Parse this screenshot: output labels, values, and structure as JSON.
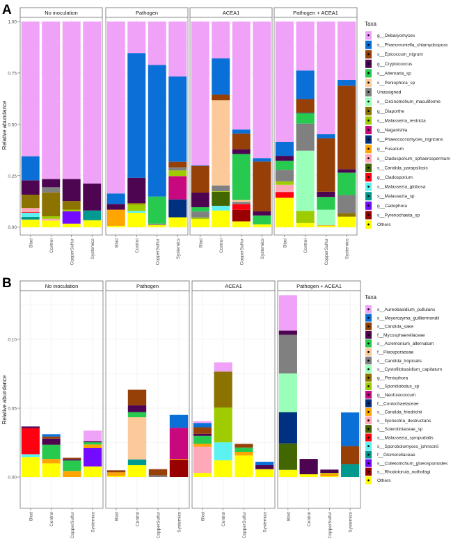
{
  "chart_data": [
    {
      "type": "bar",
      "stacked": true,
      "panel_label": "A",
      "ylabel": "Relative abundance",
      "yticks": [
        "0.00",
        "0.25",
        "0.50",
        "0.75",
        "1.00"
      ],
      "ytick_values": [
        0,
        0.25,
        0.5,
        0.75,
        1.0
      ],
      "ylim": [
        -0.04,
        1.04
      ],
      "categories": [
        "Blad",
        "Control",
        "CopperSulfur",
        "Systemics"
      ],
      "legend_title": "Taxa",
      "legend_position": "right",
      "taxa": [
        {
          "name": "g__Debaryomyces",
          "color": "#EFA2F7"
        },
        {
          "name": "s__Phaeomoniella_chlamydospora",
          "color": "#0A70D8"
        },
        {
          "name": "s__Epicoccum_nigrum",
          "color": "#963F07"
        },
        {
          "name": "g__Cryptococcus",
          "color": "#4D0552"
        },
        {
          "name": "s__Alternaria_sp",
          "color": "#27C94F"
        },
        {
          "name": "s__Peniophora_sp",
          "color": "#FCC99A"
        },
        {
          "name": "Unassigned",
          "color": "#808080"
        },
        {
          "name": "s__Circinotrichum_maculiforme",
          "color": "#99FFB9"
        },
        {
          "name": "g__Diaporthe",
          "color": "#8C7300"
        },
        {
          "name": "s__Malassezia_restricta",
          "color": "#9FCC00"
        },
        {
          "name": "g__Naganishia",
          "color": "#C8087F"
        },
        {
          "name": "s__Phaeococcomyces_nigricans",
          "color": "#003180"
        },
        {
          "name": "g__Fusarium",
          "color": "#FFA500"
        },
        {
          "name": "s__Cladosporium_sphaerospermum",
          "color": "#FFA8B8"
        },
        {
          "name": "s__Candida_parapsilosis",
          "color": "#426600"
        },
        {
          "name": "g__Cladosporium",
          "color": "#FF0010"
        },
        {
          "name": "s__Malassezia_globosa",
          "color": "#5EF1F2"
        },
        {
          "name": "s__Malassezia_sp",
          "color": "#00998F"
        },
        {
          "name": "g__Cadophora",
          "color": "#740AFF"
        },
        {
          "name": "s__Pyrenochaeta_sp",
          "color": "#990000"
        },
        {
          "name": "Others",
          "color": "#FFFF00"
        }
      ],
      "facets": [
        {
          "title": "No inoculation",
          "bars": [
            {
              "category": "Blad",
              "values": {
                "Others": 0.037,
                "s__Malassezia_sp": 0.013,
                "s__Malassezia_globosa": 0.02,
                "g__Cladosporium": 0.003,
                "s__Cladosporium_sphaerospermum": 0.02,
                "g__Diaporthe": 0.065,
                "g__Cryptococcus": 0.07,
                "s__Phaeomoniella_chlamydospora": 0.117,
                "g__Debaryomyces": 0.655
              }
            },
            {
              "category": "Control",
              "values": {
                "Others": 0.032,
                "s__Cladosporium_sphaerospermum": 0.008,
                "s__Malassezia_restricta": 0.013,
                "g__Diaporthe": 0.116,
                "Unassigned": 0.025,
                "g__Cryptococcus": 0.04,
                "g__Debaryomyces": 0.766
              }
            },
            {
              "category": "CopperSulfur",
              "values": {
                "Others": 0.017,
                "g__Cadophora": 0.06,
                "s__Malassezia_restricta": 0.008,
                "g__Diaporthe": 0.042,
                "g__Cryptococcus": 0.107,
                "g__Debaryomyces": 0.766
              }
            },
            {
              "category": "Systemics",
              "values": {
                "Others": 0.034,
                "s__Malassezia_sp": 0.047,
                "g__Cryptococcus": 0.131,
                "g__Debaryomyces": 0.788
              }
            }
          ]
        },
        {
          "title": "Pathogen",
          "bars": [
            {
              "category": "Blad",
              "values": {
                "Others": 0.006,
                "g__Fusarium": 0.079,
                "g__Cryptococcus": 0.028,
                "s__Phaeomoniella_chlamydospora": 0.051,
                "g__Debaryomyces": 0.836
              }
            },
            {
              "category": "Control",
              "values": {
                "Others": 0.07,
                "s__Malassezia_globosa": 0.009,
                "g__Diaporthe": 0.006,
                "s__Malassezia_restricta": 0.032,
                "g__Cryptococcus": 0.123,
                "s__Phaeomoniella_chlamydospora": 0.607,
                "g__Debaryomyces": 0.153
              }
            },
            {
              "category": "CopperSulfur",
              "values": {
                "Others": 0.011,
                "Unassigned": 0.006,
                "s__Alternaria_sp": 0.132,
                "s__Phaeomoniella_chlamydospora": 0.64,
                "g__Debaryomyces": 0.211
              }
            },
            {
              "category": "Systemics",
              "values": {
                "Others": 0.048,
                "s__Phaeococcomyces_nigricans": 0.087,
                "g__Naganishia": 0.113,
                "s__Malassezia_restricta": 0.028,
                "Unassigned": 0.015,
                "s__Epicoccum_nigrum": 0.027,
                "s__Phaeomoniella_chlamydospora": 0.415,
                "g__Debaryomyces": 0.267
              }
            }
          ]
        },
        {
          "title": "ACEA1",
          "bars": [
            {
              "category": "Blad",
              "values": {
                "Others": 0.039,
                "s__Malassezia_restricta": 0.008,
                "Unassigned": 0.029,
                "s__Alternaria_sp": 0.021,
                "g__Cryptococcus": 0.071,
                "s__Epicoccum_nigrum": 0.13,
                "s__Phaeomoniella_chlamydospora": 0.003,
                "g__Debaryomyces": 0.699
              }
            },
            {
              "category": "Control",
              "values": {
                "Others": 0.081,
                "s__Malassezia_globosa": 0.023,
                "s__Candida_parapsilosis": 0.068,
                "s__Malassezia_restricta": 0.003,
                "Unassigned": 0.028,
                "s__Peniophora_sp": 0.414,
                "s__Epicoccum_nigrum": 0.028,
                "s__Phaeomoniella_chlamydospora": 0.176,
                "g__Debaryomyces": 0.179
              }
            },
            {
              "category": "CopperSulfur",
              "values": {
                "Others": 0.028,
                "s__Pyrenochaeta_sp": 0.056,
                "g__Cladosporium": 0.028,
                "s__Peniophora_sp": 0.009,
                "Unassigned": 0.011,
                "s__Alternaria_sp": 0.224,
                "g__Cryptococcus": 0.023,
                "s__Epicoccum_nigrum": 0.076,
                "s__Phaeomoniella_chlamydospora": 0.02,
                "g__Debaryomyces": 0.525
              }
            },
            {
              "category": "Systemics",
              "values": {
                "Others": 0.014,
                "s__Alternaria_sp": 0.043,
                "g__Cryptococcus": 0.02,
                "s__Epicoccum_nigrum": 0.242,
                "s__Phaeomoniella_chlamydospora": 0.017,
                "g__Debaryomyces": 0.664
              }
            }
          ]
        },
        {
          "title": "Pathogen + ACEA1",
          "bars": [
            {
              "category": "Blad",
              "values": {
                "Others": 0.143,
                "g__Cladosporium": 0.028,
                "s__Cladosporium_sphaerospermum": 0.035,
                "s__Malassezia_restricta": 0.017,
                "Unassigned": 0.056,
                "s__Alternaria_sp": 0.044,
                "g__Cryptococcus": 0.024,
                "s__Phaeomoniella_chlamydospora": 0.068,
                "g__Debaryomyces": 0.585
              }
            },
            {
              "category": "Control",
              "values": {
                "Others": 0.02,
                "s__Malassezia_restricta": 0.059,
                "s__Circinotrichum_maculiforme": 0.293,
                "Unassigned": 0.132,
                "s__Alternaria_sp": 0.051,
                "g__Cryptococcus": 0.003,
                "s__Epicoccum_nigrum": 0.065,
                "s__Phaeomoniella_chlamydospora": 0.139,
                "g__Debaryomyces": 0.238
              }
            },
            {
              "category": "CopperSulfur",
              "values": {
                "Others": 0.006,
                "g__Fusarium": 0.003,
                "s__Circinotrichum_maculiforme": 0.076,
                "s__Alternaria_sp": 0.062,
                "g__Cryptococcus": 0.025,
                "s__Epicoccum_nigrum": 0.26,
                "s__Phaeomoniella_chlamydospora": 0.02,
                "g__Debaryomyces": 0.548
              }
            },
            {
              "category": "Systemics",
              "values": {
                "Others": 0.051,
                "g__Diaporthe": 0.017,
                "Unassigned": 0.088,
                "s__Alternaria_sp": 0.109,
                "g__Cryptococcus": 0.017,
                "s__Epicoccum_nigrum": 0.406,
                "s__Phaeomoniella_chlamydospora": 0.028,
                "g__Debaryomyces": 0.284
              }
            }
          ]
        }
      ]
    },
    {
      "type": "bar",
      "stacked": true,
      "panel_label": "B",
      "ylabel": "Relative abundance",
      "yticks": [
        "0.00",
        "0.05",
        "0.10"
      ],
      "ytick_values": [
        0,
        0.05,
        0.1
      ],
      "ylim": [
        -0.023,
        0.135
      ],
      "categories": [
        "Blad",
        "Control",
        "CopperSulfur",
        "Systemics"
      ],
      "legend_title": "Taxa",
      "legend_position": "right",
      "taxa": [
        {
          "name": "s__Aureobasidium_pullulans",
          "color": "#EFA2F7"
        },
        {
          "name": "s__Meyerozyma_guilliermondii",
          "color": "#0A70D8"
        },
        {
          "name": "s__Candida_sake",
          "color": "#963F07"
        },
        {
          "name": "f__Mycosphaerellaceae",
          "color": "#4D0552"
        },
        {
          "name": "s__Acremonium_alternatum",
          "color": "#27C94F"
        },
        {
          "name": "f__Pleosporaceae",
          "color": "#FCC99A"
        },
        {
          "name": "s__Candida_tropicalis",
          "color": "#808080"
        },
        {
          "name": "s__Cystofilobasidium_capitatum",
          "color": "#99FFB9"
        },
        {
          "name": "g__Peniophora",
          "color": "#8C7300"
        },
        {
          "name": "s__Sporidiobolus_sp",
          "color": "#9FCC00"
        },
        {
          "name": "g__Neofusicoccum",
          "color": "#C8087F"
        },
        {
          "name": "f__Coniochaetaceae",
          "color": "#003180"
        },
        {
          "name": "s__Candida_friedrichii",
          "color": "#FFA500"
        },
        {
          "name": "s__Ilyonectria_destructans",
          "color": "#FFA8B8"
        },
        {
          "name": "s__Sclerotiniaceae_sp",
          "color": "#426600"
        },
        {
          "name": "s__Malassezia_sympodialis",
          "color": "#FF0010"
        },
        {
          "name": "s__Sporobolomyces_johnsonii",
          "color": "#5EF1F2"
        },
        {
          "name": "f__Glomerellaceae",
          "color": "#00998F"
        },
        {
          "name": "s__Colletotrichum_gloeosporioides",
          "color": "#740AFF"
        },
        {
          "name": "s__Rhodotorula_nothofagi",
          "color": "#990000"
        },
        {
          "name": "Others",
          "color": "#FFFF00"
        }
      ],
      "facets": [
        {
          "title": "No inoculation",
          "bars": [
            {
              "category": "Blad",
              "values": {
                "Others": 0.0145,
                "s__Sporobolomyces_johnsonii": 0.002,
                "s__Malassezia_sympodialis": 0.019,
                "f__Mycosphaerellaceae": 0.0012
              }
            },
            {
              "category": "Control",
              "values": {
                "Others": 0.0099,
                "s__Candida_friedrichii": 0.0032,
                "s__Acremonium_alternatum": 0.0103,
                "f__Mycosphaerellaceae": 0.0045,
                "s__Candida_sake": 0.0015,
                "s__Meyerozyma_guilliermondii": 0.0017
              }
            },
            {
              "category": "CopperSulfur",
              "values": {
                "s__Candida_friedrichii": 0.0044,
                "s__Acremonium_alternatum": 0.0076,
                "f__Mycosphaerellaceae": 0.001,
                "s__Candida_sake": 0.001
              }
            },
            {
              "category": "Systemics",
              "values": {
                "Others": 0.0077,
                "s__Colletotrichum_gloeosporioides": 0.0135,
                "s__Candida_friedrichii": 0.0024,
                "s__Acremonium_alternatum": 0.0017,
                "f__Mycosphaerellaceae": 0.0008,
                "s__Aureobasidium_pullulans": 0.0076
              }
            }
          ]
        },
        {
          "title": "Pathogen",
          "bars": [
            {
              "category": "Blad",
              "values": {
                "Others": 0.0007,
                "s__Candida_friedrichii": 0.0027,
                "s__Candida_sake": 0.0015
              }
            },
            {
              "category": "Control",
              "values": {
                "Others": 0.0086,
                "f__Glomerellaceae": 0.0042,
                "f__Pleosporaceae": 0.0306,
                "s__Acremonium_alternatum": 0.0037,
                "f__Mycosphaerellaceae": 0.005,
                "s__Candida_sake": 0.0113
              }
            },
            {
              "category": "CopperSulfur",
              "values": {
                "s__Candida_tropicalis": 0.0012,
                "s__Candida_sake": 0.0045
              }
            },
            {
              "category": "Systemics",
              "values": {
                "s__Rhodotorula_nothofagi": 0.0126,
                "s__Candida_friedrichii": 0.0005,
                "g__Neofusicoccum": 0.0227,
                "s__Meyerozyma_guilliermondii": 0.0093
              }
            }
          ]
        },
        {
          "title": "ACEA1",
          "bars": [
            {
              "category": "Blad",
              "values": {
                "Others": 0.003,
                "s__Ilyonectria_destructans": 0.019,
                "s__Candida_friedrichii": 0.0022,
                "s__Acremonium_alternatum": 0.0057,
                "f__Mycosphaerellaceae": 0.0015,
                "s__Candida_sake": 0.0047,
                "s__Meyerozyma_guilliermondii": 0.0032,
                "s__Aureobasidium_pullulans": 0.0013
              }
            },
            {
              "category": "Control",
              "values": {
                "Others": 0.0121,
                "s__Sporobolomyces_johnsonii": 0.0131,
                "s__Sporidiobolus_sp": 0.0253,
                "g__Peniophora": 0.0261,
                "s__Aureobasidium_pullulans": 0.0066
              }
            },
            {
              "category": "CopperSulfur",
              "values": {
                "Others": 0.0157,
                "s__Candida_friedrichii": 0.0025,
                "s__Acremonium_alternatum": 0.0032,
                "s__Candida_sake": 0.0027
              }
            },
            {
              "category": "Systemics",
              "values": {
                "Others": 0.0057,
                "f__Mycosphaerellaceae": 0.0029,
                "s__Meyerozyma_guilliermondii": 0.0025
              }
            }
          ]
        },
        {
          "title": "Pathogen + ACEA1",
          "bars": [
            {
              "category": "Blad",
              "values": {
                "Others": 0.0052,
                "s__Sclerotiniaceae_sp": 0.0192,
                "f__Coniochaetaceae": 0.0227,
                "s__Cystofilobasidium_capitatum": 0.0281,
                "s__Candida_tropicalis": 0.0281,
                "f__Mycosphaerellaceae": 0.003,
                "s__Aureobasidium_pullulans": 0.0258
              }
            },
            {
              "category": "Control",
              "values": {
                "Others": 0.002,
                "f__Mycosphaerellaceae": 0.0111
              }
            },
            {
              "category": "CopperSulfur",
              "values": {
                "Others": 0.0005,
                "s__Sporidiobolus_sp": 0.0005,
                "s__Candida_friedrichii": 0.002,
                "f__Mycosphaerellaceae": 0.0024
              }
            },
            {
              "category": "Systemics",
              "values": {
                "f__Glomerellaceae": 0.0094,
                "s__Candida_sake": 0.0131,
                "s__Meyerozyma_guilliermondii": 0.0244
              }
            }
          ]
        }
      ]
    }
  ]
}
